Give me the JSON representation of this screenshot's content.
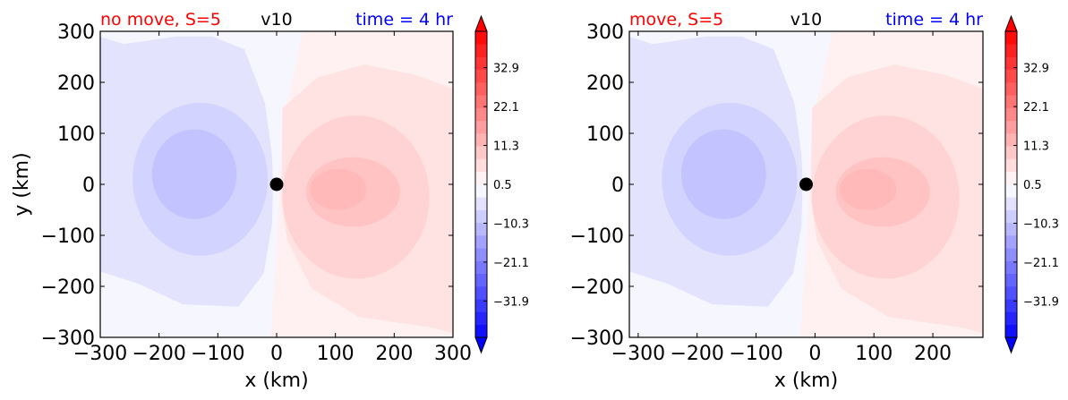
{
  "chart_data": [
    {
      "type": "contour",
      "title_left": "no move, S=5",
      "title_center": "v10",
      "title_right": "time = 4 hr",
      "xlabel": "x (km)",
      "ylabel": "y (km)",
      "xlim": [
        -300,
        300
      ],
      "ylim": [
        -300,
        300
      ],
      "xticks": [
        "−300",
        "−200",
        "−100",
        "0",
        "100",
        "200",
        "300"
      ],
      "xtick_values": [
        -300,
        -200,
        -100,
        0,
        100,
        200,
        300
      ],
      "yticks": [
        "300",
        "200",
        "100",
        "0",
        "−100",
        "−200",
        "−300"
      ],
      "ytick_values": [
        300,
        200,
        100,
        0,
        -100,
        -200,
        -300
      ],
      "center_marker": [
        0,
        0
      ],
      "dipole": {
        "negative_center": [
          -120,
          20
        ],
        "positive_center": [
          105,
          -15
        ]
      },
      "colorbar": {
        "range": [
          -42,
          43
        ],
        "ticks": [
          "32.9",
          "22.1",
          "11.3",
          "0.5",
          "−10.3",
          "−21.1",
          "−31.9"
        ],
        "tick_values": [
          32.9,
          22.1,
          11.3,
          0.5,
          -10.3,
          -21.1,
          -31.9
        ],
        "extend": "both",
        "cmap": "bwr"
      }
    },
    {
      "type": "contour",
      "title_left": "move, S=5",
      "title_center": "v10",
      "title_right": "time = 4 hr",
      "xlabel": "x (km)",
      "ylabel": "",
      "xlim": [
        -315,
        285
      ],
      "ylim": [
        -300,
        300
      ],
      "xticks": [
        "−300",
        "−200",
        "−100",
        "0",
        "100",
        "200"
      ],
      "xtick_values": [
        -300,
        -200,
        -100,
        0,
        100,
        200
      ],
      "yticks": [
        "300",
        "200",
        "100",
        "0",
        "−100",
        "−200",
        "−300"
      ],
      "ytick_values": [
        300,
        200,
        100,
        0,
        -100,
        -200,
        -300
      ],
      "center_marker": [
        -15,
        0
      ],
      "dipole": {
        "negative_center": [
          -135,
          20
        ],
        "positive_center": [
          90,
          -15
        ]
      },
      "colorbar": {
        "range": [
          -42,
          43
        ],
        "ticks": [
          "32.9",
          "22.1",
          "11.3",
          "0.5",
          "−10.3",
          "−21.1",
          "−31.9"
        ],
        "tick_values": [
          32.9,
          22.1,
          11.3,
          0.5,
          -10.3,
          -21.1,
          -31.9
        ],
        "extend": "both",
        "cmap": "bwr"
      }
    }
  ],
  "colors": {
    "title_left": "#ff0000",
    "title_right": "#0000ff",
    "neg_strong": "#c3c3ff",
    "neg_mid": "#d3d3ff",
    "neg_weak": "#e3e3fd",
    "neutral": "#f6f6ff",
    "pos_weak": "#fff1f1",
    "pos_mid": "#ffe3e3",
    "pos_strong": "#ffd3d3",
    "pos_core": "#ffc3c3"
  }
}
